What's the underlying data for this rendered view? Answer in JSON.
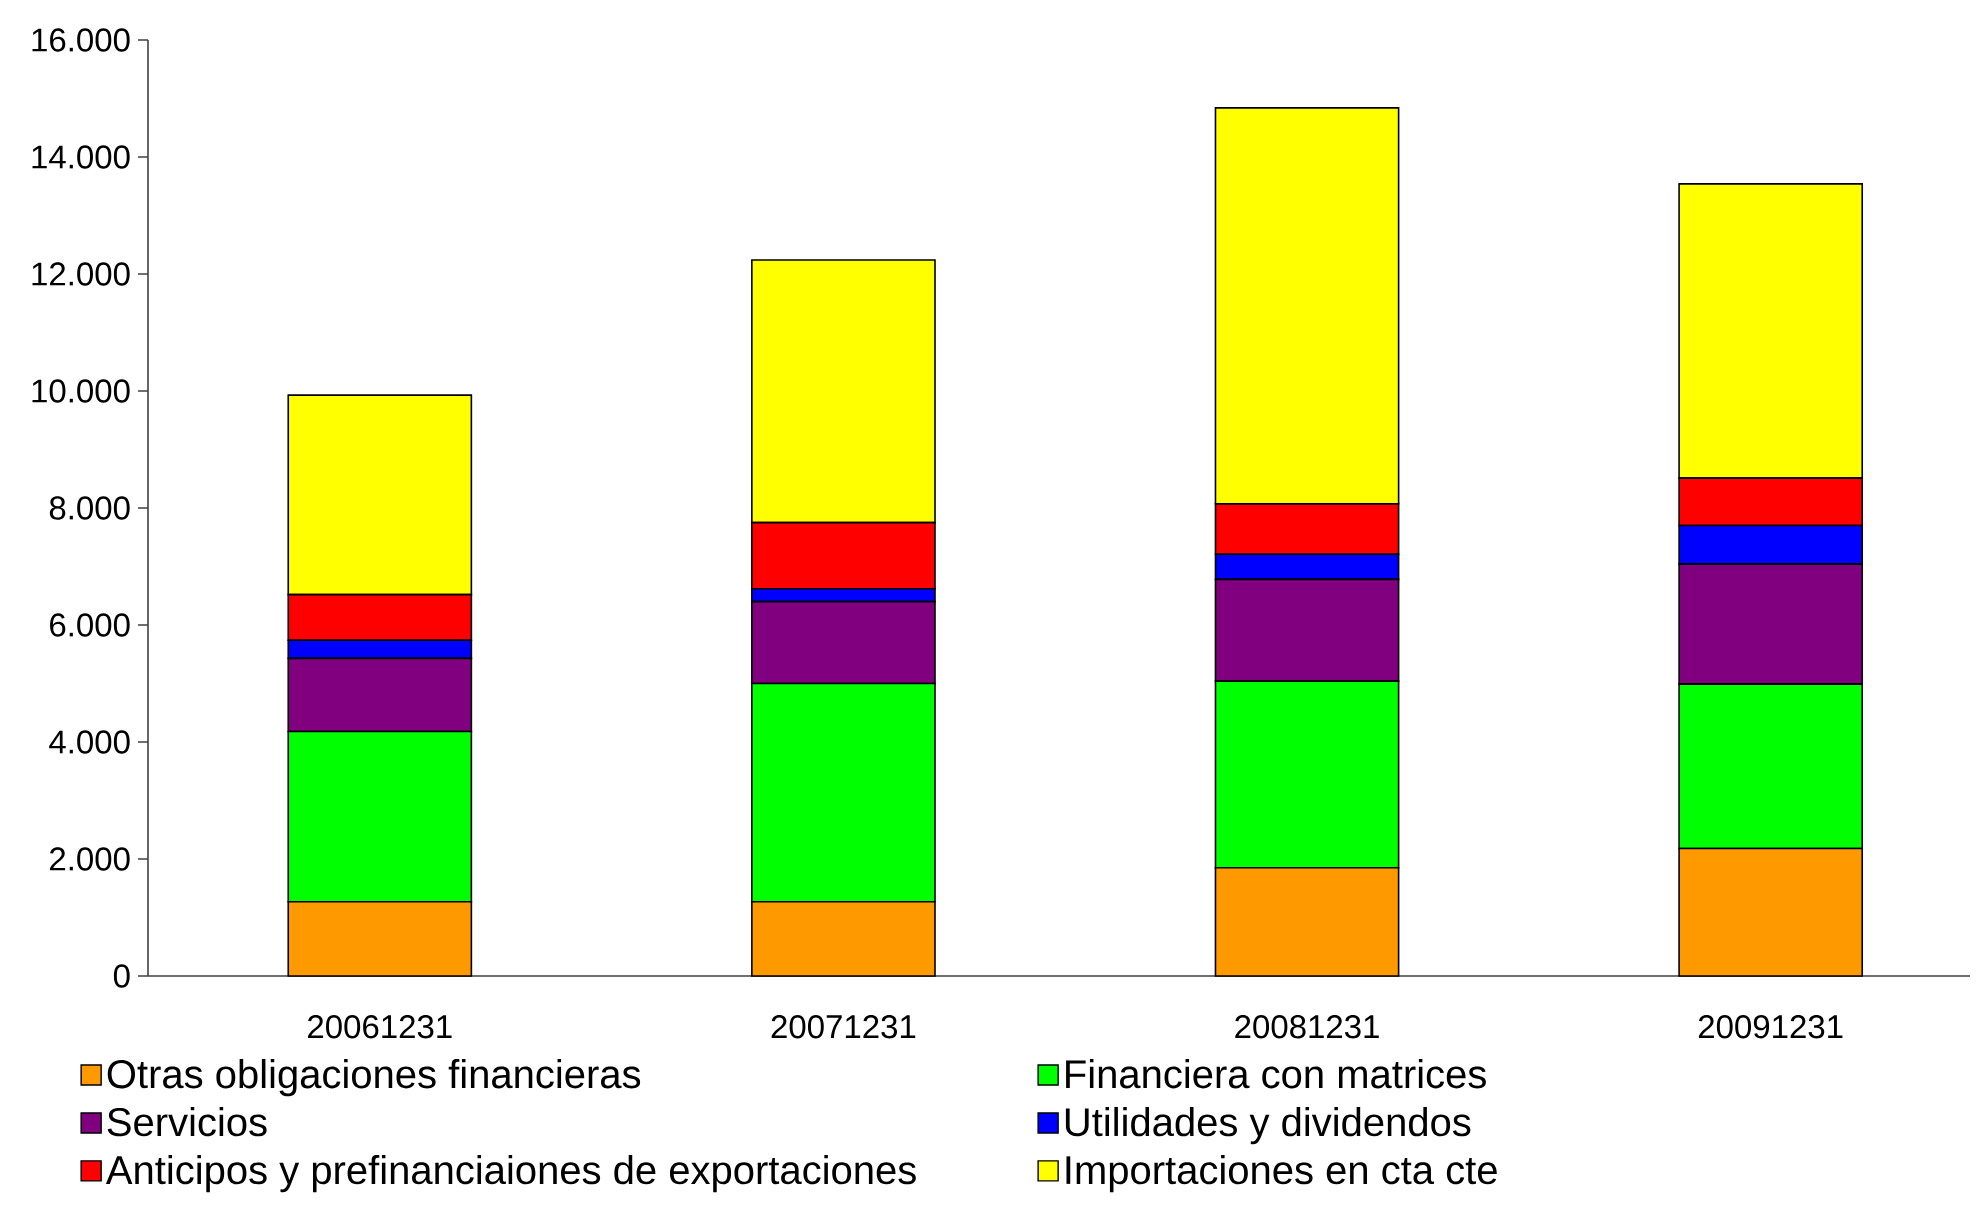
{
  "chart_data": {
    "type": "bar",
    "stacked": true,
    "categories": [
      "20061231",
      "20071231",
      "20081231",
      "20091231"
    ],
    "series": [
      {
        "name": "Otras obligaciones financieras",
        "color": "#ff9900",
        "values": [
          1270,
          1270,
          1850,
          2180
        ]
      },
      {
        "name": "Financiera con matrices",
        "color": "#00ff00",
        "values": [
          2910,
          3730,
          3190,
          2810
        ]
      },
      {
        "name": "Servicios",
        "color": "#800080",
        "values": [
          1250,
          1400,
          1740,
          2050
        ]
      },
      {
        "name": "Utilidades y dividendos",
        "color": "#0000ff",
        "values": [
          310,
          220,
          430,
          660
        ]
      },
      {
        "name": "Anticipos y prefinanciaiones de exportaciones",
        "color": "#ff0000",
        "values": [
          780,
          1130,
          860,
          810
        ]
      },
      {
        "name": "Importaciones en cta cte",
        "color": "#ffff00",
        "values": [
          3410,
          4490,
          6770,
          5030
        ]
      }
    ],
    "ylim": [
      0,
      16000
    ],
    "yticks": [
      0,
      {
        "value": 2000,
        "label": "2.000"
      },
      {
        "value": 4000,
        "label": "4.000"
      },
      {
        "value": 6000,
        "label": "6.000"
      },
      {
        "value": 8000,
        "label": "8.000"
      },
      {
        "value": 10000,
        "label": "10.000"
      },
      {
        "value": 12000,
        "label": "12.000"
      },
      {
        "value": 14000,
        "label": "14.000"
      },
      {
        "value": 16000,
        "label": "16.000"
      }
    ],
    "legend": "bottom"
  }
}
